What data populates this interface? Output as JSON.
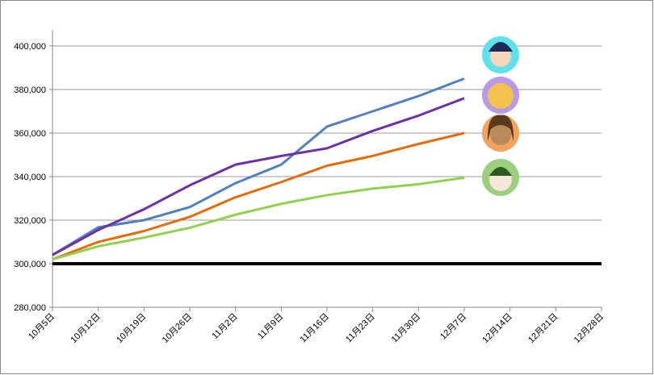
{
  "chart_data": {
    "type": "line",
    "categories": [
      "10月5日",
      "10月12日",
      "10月19日",
      "10月26日",
      "11月2日",
      "11月9日",
      "11月16日",
      "11月23日",
      "11月30日",
      "12月7日",
      "12月14日",
      "12月21日",
      "12月28日"
    ],
    "series": [
      {
        "color": "#4f81bd",
        "values": [
          304000,
          316700,
          320000,
          326000,
          337000,
          345500,
          363000,
          370000,
          377000,
          385000,
          null,
          null,
          null
        ]
      },
      {
        "color": "#7030a0",
        "values": [
          304000,
          315500,
          325000,
          336000,
          345500,
          349500,
          353000,
          361000,
          368000,
          376000,
          null,
          null,
          null
        ]
      },
      {
        "color": "#e36c09",
        "values": [
          302000,
          310000,
          315000,
          321500,
          330500,
          337500,
          345000,
          349500,
          355000,
          360000,
          null,
          null,
          null
        ]
      },
      {
        "color": "#92d050",
        "values": [
          302000,
          308000,
          312000,
          316500,
          322500,
          327500,
          331500,
          334500,
          336500,
          339500,
          null,
          null,
          null
        ]
      }
    ],
    "reference_line": 300000,
    "ylim": [
      280000,
      400000
    ],
    "yticks": [
      {
        "value": 280000,
        "label": "280,000"
      },
      {
        "value": 300000,
        "label": "300,000"
      },
      {
        "value": 320000,
        "label": "320,000"
      },
      {
        "value": 340000,
        "label": "340,000"
      },
      {
        "value": 360000,
        "label": "360,000"
      },
      {
        "value": 380000,
        "label": "380,000"
      },
      {
        "value": 400000,
        "label": "400,000"
      }
    ],
    "grid": true
  }
}
